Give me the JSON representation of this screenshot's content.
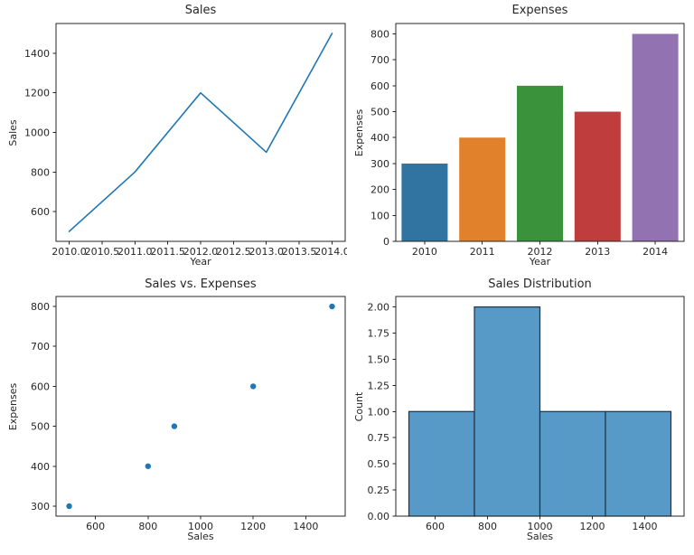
{
  "figure": {
    "background": "#ffffff",
    "spine_color": "#262626",
    "text_color": "#262626",
    "accent_blue": "#1f77b4"
  },
  "chart_data": [
    {
      "id": "sales-line",
      "type": "line",
      "title": "Sales",
      "xlabel": "Year",
      "ylabel": "Sales",
      "x": [
        2010,
        2011,
        2012,
        2013,
        2014
      ],
      "y": [
        500,
        800,
        1200,
        900,
        1500
      ],
      "color": "#1f77b4",
      "line_width": 1.6,
      "xlim": [
        2009.8,
        2014.2
      ],
      "ylim": [
        450,
        1550
      ],
      "xticks": {
        "values": [
          2010.0,
          2010.5,
          2011.0,
          2011.5,
          2012.0,
          2012.5,
          2013.0,
          2013.5,
          2014.0
        ],
        "labels": [
          "2010.0",
          "2010.5",
          "2011.0",
          "2011.5",
          "2012.0",
          "2012.5",
          "2013.0",
          "2013.5",
          "2014.0"
        ]
      },
      "yticks": {
        "values": [
          600,
          800,
          1000,
          1200,
          1400
        ],
        "labels": [
          "600",
          "800",
          "1000",
          "1200",
          "1400"
        ]
      },
      "grid": false,
      "legend": null
    },
    {
      "id": "expenses-bar",
      "type": "bar",
      "title": "Expenses",
      "xlabel": "Year",
      "ylabel": "Expenses",
      "categories": [
        "2010",
        "2011",
        "2012",
        "2013",
        "2014"
      ],
      "values": [
        300,
        400,
        600,
        500,
        800
      ],
      "bar_colors": [
        "#3274a1",
        "#e1812c",
        "#3a923a",
        "#c03d3e",
        "#9372b2"
      ],
      "bar_width": 0.8,
      "ylim": [
        0,
        840
      ],
      "yticks": {
        "values": [
          0,
          100,
          200,
          300,
          400,
          500,
          600,
          700,
          800
        ],
        "labels": [
          "0",
          "100",
          "200",
          "300",
          "400",
          "500",
          "600",
          "700",
          "800"
        ]
      },
      "grid": false,
      "legend": null
    },
    {
      "id": "sales-vs-expenses-scatter",
      "type": "scatter",
      "title": "Sales vs. Expenses",
      "xlabel": "Sales",
      "ylabel": "Expenses",
      "points": [
        [
          500,
          300
        ],
        [
          800,
          400
        ],
        [
          900,
          500
        ],
        [
          1200,
          600
        ],
        [
          1500,
          800
        ]
      ],
      "color": "#1f77b4",
      "marker_radius": 3.2,
      "xlim": [
        450,
        1550
      ],
      "ylim": [
        275,
        825
      ],
      "xticks": {
        "values": [
          600,
          800,
          1000,
          1200,
          1400
        ],
        "labels": [
          "600",
          "800",
          "1000",
          "1200",
          "1400"
        ]
      },
      "yticks": {
        "values": [
          300,
          400,
          500,
          600,
          700,
          800
        ],
        "labels": [
          "300",
          "400",
          "500",
          "600",
          "700",
          "800"
        ]
      },
      "grid": false,
      "legend": null
    },
    {
      "id": "sales-distribution-histogram",
      "type": "histogram",
      "title": "Sales Distribution",
      "xlabel": "Sales",
      "ylabel": "Count",
      "bin_edges": [
        500,
        750,
        1000,
        1250,
        1500
      ],
      "counts": [
        1,
        2,
        1,
        1
      ],
      "fill": "#5799c7",
      "edge_color": "#223240",
      "edge_width": 1.2,
      "xlim": [
        450,
        1550
      ],
      "ylim": [
        0,
        2.1
      ],
      "xticks": {
        "values": [
          600,
          800,
          1000,
          1200,
          1400
        ],
        "labels": [
          "600",
          "800",
          "1000",
          "1200",
          "1400"
        ]
      },
      "yticks": {
        "values": [
          0,
          0.25,
          0.5,
          0.75,
          1.0,
          1.25,
          1.5,
          1.75,
          2.0
        ],
        "labels": [
          "0.00",
          "0.25",
          "0.50",
          "0.75",
          "1.00",
          "1.25",
          "1.50",
          "1.75",
          "2.00"
        ]
      },
      "grid": false,
      "legend": null
    }
  ]
}
